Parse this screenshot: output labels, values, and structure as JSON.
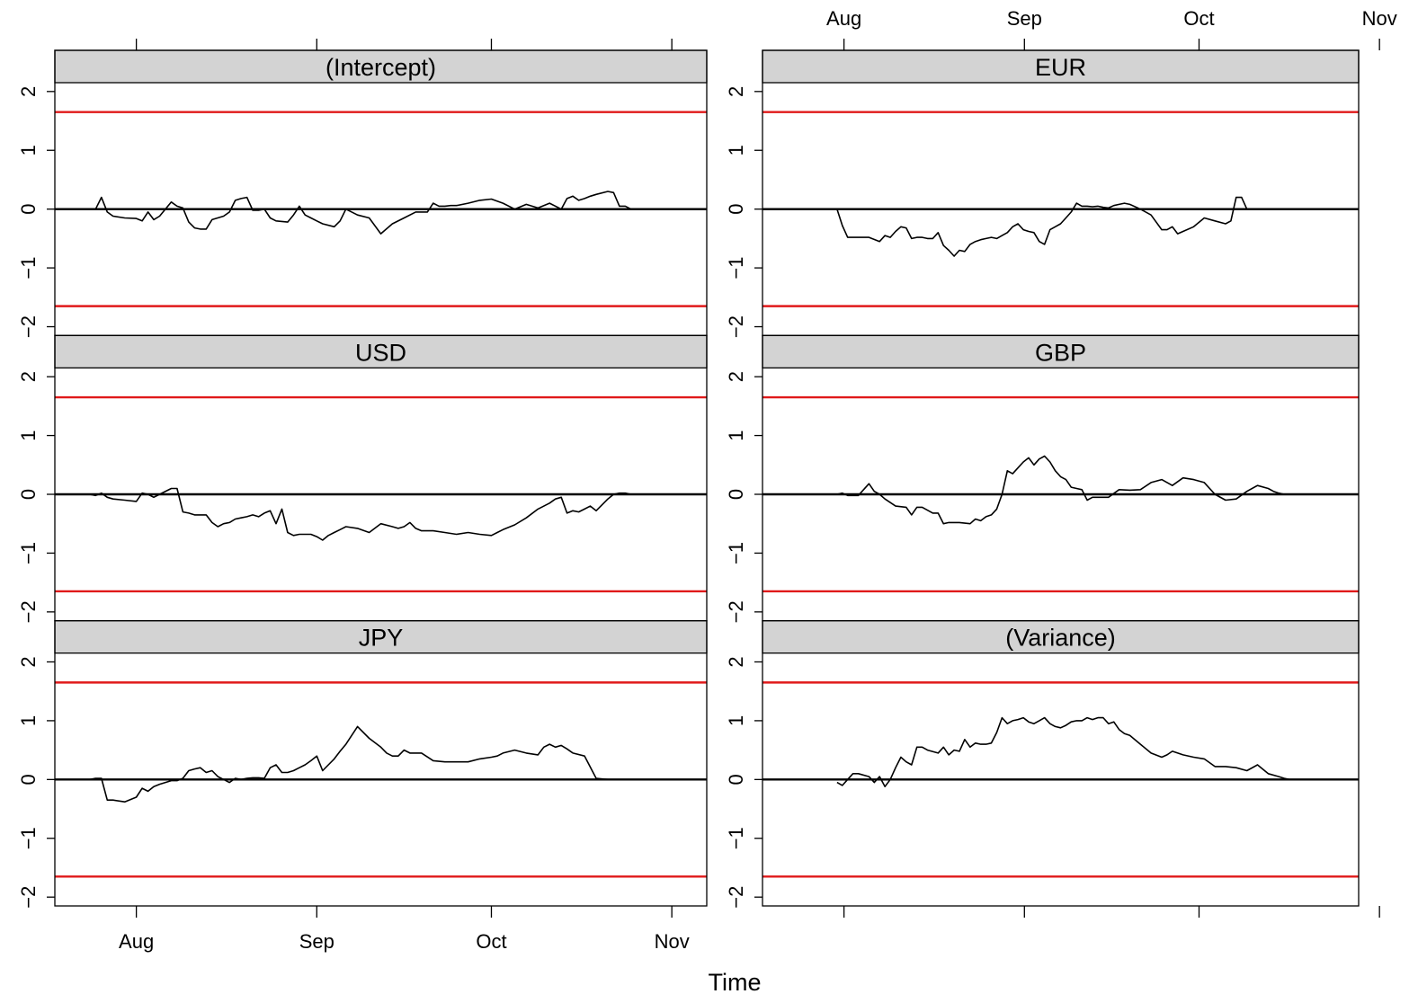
{
  "chart_data": {
    "type": "line",
    "xlabel": "Time",
    "ylabel": "",
    "ylim": [
      -2.15,
      2.15
    ],
    "y_ticks": [
      -2,
      -1,
      0,
      1,
      2
    ],
    "y_tick_labels": [
      "−2",
      "−1",
      "0",
      "1",
      "2"
    ],
    "x_ticks": [
      1,
      32,
      62,
      93
    ],
    "x_tick_labels": [
      "Aug",
      "Sep",
      "Oct",
      "Nov"
    ],
    "xlim": [
      -13,
      99
    ],
    "x_unit": "days since 1 Aug",
    "reference_lines": {
      "zero": 0,
      "upper": 1.65,
      "lower": -1.65
    },
    "colors": {
      "boundary": "#e0191a",
      "series": "#000000",
      "strip": "#d3d3d3"
    },
    "series": [
      {
        "name": "(Intercept)",
        "x": [
          -7,
          -6,
          -5,
          -4,
          -3,
          -1,
          1,
          2,
          3,
          4,
          5,
          7,
          8,
          9,
          10,
          11,
          12,
          13,
          14,
          16,
          17,
          18,
          19,
          20,
          21,
          22,
          23,
          24,
          25,
          27,
          28,
          29,
          30,
          31,
          32,
          33,
          35,
          36,
          37,
          39,
          41,
          43,
          45,
          47,
          49,
          51,
          52,
          53,
          54,
          55,
          56,
          58,
          60,
          62,
          64,
          66,
          68,
          70,
          72,
          74,
          75,
          76,
          77,
          78,
          79,
          80,
          82,
          83,
          84,
          85,
          86,
          87,
          88,
          89,
          90,
          91,
          92,
          93
        ],
        "y": [
          0.0,
          0.0,
          0.2,
          -0.05,
          -0.12,
          -0.15,
          -0.16,
          -0.2,
          -0.05,
          -0.18,
          -0.12,
          0.12,
          0.05,
          0.02,
          -0.22,
          -0.32,
          -0.34,
          -0.34,
          -0.18,
          -0.12,
          -0.05,
          0.15,
          0.18,
          0.2,
          -0.02,
          -0.02,
          0.0,
          -0.15,
          -0.2,
          -0.22,
          -0.1,
          0.05,
          -0.1,
          -0.15,
          -0.2,
          -0.25,
          -0.3,
          -0.2,
          0.0,
          -0.1,
          -0.15,
          -0.42,
          -0.25,
          -0.15,
          -0.05,
          -0.05,
          0.1,
          0.05,
          0.05,
          0.06,
          0.06,
          0.1,
          0.15,
          0.17,
          0.1,
          0.0,
          0.08,
          0.02,
          0.1,
          0.0,
          0.18,
          0.22,
          0.15,
          0.18,
          0.22,
          0.25,
          0.3,
          0.28,
          0.05,
          0.05,
          0.0,
          0.0,
          0.0,
          0.0,
          0.0,
          0.0,
          0.0,
          0.0
        ]
      },
      {
        "name": "EUR",
        "x": [
          1,
          2,
          3,
          4,
          5,
          7,
          9,
          10,
          11,
          12,
          13,
          14,
          15,
          16,
          17,
          18,
          19,
          20,
          21,
          22,
          23,
          24,
          25,
          26,
          27,
          28,
          29,
          30,
          31,
          32,
          33,
          34,
          35,
          36,
          37,
          38,
          39,
          40,
          41,
          42,
          43,
          44,
          45,
          46,
          47,
          48,
          49,
          50,
          51,
          52,
          53,
          54,
          55,
          56,
          58,
          60,
          62,
          63,
          64,
          65,
          66,
          68,
          70,
          72,
          74,
          75,
          76,
          77,
          78,
          80,
          82,
          84,
          85,
          86,
          88,
          90,
          92,
          93
        ],
        "y": [
          0.0,
          -0.28,
          -0.48,
          -0.48,
          -0.48,
          -0.48,
          -0.55,
          -0.45,
          -0.48,
          -0.38,
          -0.3,
          -0.32,
          -0.5,
          -0.48,
          -0.48,
          -0.5,
          -0.5,
          -0.4,
          -0.62,
          -0.7,
          -0.8,
          -0.7,
          -0.72,
          -0.6,
          -0.55,
          -0.52,
          -0.5,
          -0.48,
          -0.5,
          -0.45,
          -0.4,
          -0.3,
          -0.25,
          -0.35,
          -0.38,
          -0.4,
          -0.55,
          -0.6,
          -0.35,
          -0.3,
          -0.25,
          -0.15,
          -0.05,
          0.1,
          0.05,
          0.05,
          0.04,
          0.05,
          0.03,
          0.02,
          0.06,
          0.08,
          0.1,
          0.08,
          0.0,
          -0.1,
          -0.35,
          -0.35,
          -0.3,
          -0.42,
          -0.38,
          -0.3,
          -0.15,
          -0.2,
          -0.25,
          -0.2,
          0.2,
          0.2,
          0.0,
          0.0,
          0.0,
          0.0,
          0.0,
          0.0,
          0.0,
          0.0,
          0.0,
          0.0
        ]
      },
      {
        "name": "USD",
        "x": [
          -7,
          -6,
          -5,
          -4,
          -3,
          -1,
          1,
          2,
          3,
          4,
          5,
          7,
          8,
          9,
          10,
          11,
          12,
          13,
          14,
          15,
          16,
          17,
          18,
          19,
          20,
          21,
          22,
          23,
          24,
          25,
          26,
          27,
          28,
          29,
          30,
          31,
          32,
          33,
          34,
          35,
          36,
          37,
          39,
          41,
          43,
          45,
          46,
          47,
          48,
          49,
          50,
          52,
          54,
          56,
          58,
          60,
          62,
          63,
          64,
          66,
          68,
          70,
          72,
          73,
          74,
          75,
          76,
          77,
          78,
          79,
          80,
          82,
          83,
          84,
          85,
          86,
          87,
          88,
          89,
          90,
          91,
          92,
          93
        ],
        "y": [
          0.0,
          -0.02,
          0.02,
          -0.05,
          -0.08,
          -0.1,
          -0.12,
          0.02,
          0.0,
          -0.05,
          0.0,
          0.1,
          0.1,
          -0.3,
          -0.32,
          -0.35,
          -0.35,
          -0.35,
          -0.48,
          -0.55,
          -0.5,
          -0.48,
          -0.42,
          -0.4,
          -0.38,
          -0.35,
          -0.38,
          -0.32,
          -0.28,
          -0.5,
          -0.25,
          -0.65,
          -0.7,
          -0.68,
          -0.68,
          -0.68,
          -0.72,
          -0.78,
          -0.7,
          -0.65,
          -0.6,
          -0.55,
          -0.58,
          -0.65,
          -0.5,
          -0.55,
          -0.58,
          -0.55,
          -0.48,
          -0.58,
          -0.62,
          -0.62,
          -0.65,
          -0.68,
          -0.65,
          -0.68,
          -0.7,
          -0.65,
          -0.6,
          -0.52,
          -0.4,
          -0.25,
          -0.15,
          -0.08,
          -0.05,
          -0.32,
          -0.28,
          -0.3,
          -0.25,
          -0.2,
          -0.28,
          -0.08,
          0.0,
          0.02,
          0.02,
          0.0,
          0.0,
          0.0,
          0.0,
          0.0,
          0.0,
          0.0,
          0.0
        ]
      },
      {
        "name": "GBP",
        "x": [
          1,
          2,
          3,
          5,
          7,
          8,
          9,
          10,
          12,
          14,
          15,
          16,
          17,
          19,
          20,
          21,
          22,
          24,
          26,
          27,
          28,
          29,
          30,
          31,
          32,
          33,
          34,
          35,
          36,
          37,
          38,
          39,
          40,
          41,
          42,
          43,
          44,
          45,
          46,
          47,
          48,
          49,
          50,
          52,
          54,
          56,
          58,
          60,
          62,
          64,
          66,
          68,
          70,
          72,
          74,
          76,
          78,
          80,
          82,
          83,
          84,
          85,
          86,
          88,
          90,
          92,
          93
        ],
        "y": [
          0.0,
          0.02,
          -0.02,
          -0.02,
          0.18,
          0.05,
          0.0,
          -0.08,
          -0.2,
          -0.22,
          -0.35,
          -0.22,
          -0.22,
          -0.32,
          -0.32,
          -0.5,
          -0.48,
          -0.48,
          -0.5,
          -0.42,
          -0.45,
          -0.38,
          -0.35,
          -0.25,
          0.0,
          0.4,
          0.35,
          0.45,
          0.55,
          0.62,
          0.5,
          0.6,
          0.65,
          0.55,
          0.4,
          0.3,
          0.25,
          0.12,
          0.1,
          0.08,
          -0.1,
          -0.05,
          -0.05,
          -0.05,
          0.08,
          0.07,
          0.08,
          0.2,
          0.25,
          0.15,
          0.28,
          0.25,
          0.2,
          0.0,
          -0.1,
          -0.08,
          0.05,
          0.15,
          0.1,
          0.05,
          0.02,
          0.0,
          0.0,
          0.0,
          0.0,
          0.0,
          0.0
        ]
      },
      {
        "name": "JPY",
        "x": [
          -7,
          -6,
          -5,
          -4,
          -3,
          -1,
          1,
          2,
          3,
          4,
          5,
          6,
          7,
          8,
          9,
          10,
          11,
          12,
          13,
          14,
          15,
          16,
          17,
          18,
          19,
          20,
          21,
          22,
          23,
          24,
          25,
          26,
          27,
          28,
          29,
          30,
          31,
          32,
          33,
          34,
          35,
          36,
          37,
          39,
          41,
          43,
          44,
          45,
          46,
          47,
          48,
          49,
          50,
          52,
          54,
          55,
          56,
          58,
          60,
          62,
          63,
          64,
          66,
          68,
          70,
          71,
          72,
          73,
          74,
          75,
          76,
          78,
          80,
          82,
          83,
          84,
          85,
          86,
          87,
          88,
          89,
          90,
          91,
          92,
          93
        ],
        "y": [
          0.0,
          0.02,
          0.02,
          -0.35,
          -0.35,
          -0.38,
          -0.3,
          -0.15,
          -0.2,
          -0.12,
          -0.08,
          -0.05,
          -0.02,
          -0.02,
          0.02,
          0.15,
          0.18,
          0.2,
          0.12,
          0.15,
          0.05,
          0.0,
          -0.05,
          0.02,
          0.0,
          0.02,
          0.03,
          0.03,
          0.02,
          0.2,
          0.25,
          0.12,
          0.12,
          0.15,
          0.2,
          0.25,
          0.32,
          0.4,
          0.15,
          0.25,
          0.35,
          0.48,
          0.6,
          0.9,
          0.7,
          0.55,
          0.45,
          0.4,
          0.4,
          0.5,
          0.45,
          0.45,
          0.45,
          0.32,
          0.3,
          0.3,
          0.3,
          0.3,
          0.35,
          0.38,
          0.4,
          0.45,
          0.5,
          0.45,
          0.42,
          0.55,
          0.6,
          0.55,
          0.58,
          0.52,
          0.45,
          0.4,
          0.02,
          0.0,
          0.0,
          0.0,
          0.0,
          0.0,
          0.0,
          0.0,
          0.0,
          0.0,
          0.0,
          0.0,
          0.0
        ]
      },
      {
        "name": "(Variance)",
        "x": [
          1,
          2,
          3,
          4,
          5,
          7,
          8,
          9,
          10,
          11,
          12,
          13,
          14,
          15,
          16,
          17,
          18,
          20,
          21,
          22,
          23,
          24,
          25,
          26,
          27,
          28,
          29,
          30,
          31,
          32,
          33,
          34,
          35,
          36,
          37,
          38,
          39,
          40,
          41,
          42,
          43,
          44,
          45,
          46,
          47,
          48,
          49,
          50,
          51,
          52,
          53,
          54,
          55,
          56,
          58,
          60,
          62,
          63,
          64,
          66,
          68,
          70,
          72,
          74,
          76,
          78,
          80,
          82,
          84,
          85,
          86,
          87,
          88,
          90,
          92,
          93
        ],
        "y": [
          -0.05,
          -0.1,
          0.0,
          0.1,
          0.1,
          0.05,
          -0.05,
          0.05,
          -0.12,
          0.0,
          0.2,
          0.38,
          0.3,
          0.25,
          0.55,
          0.55,
          0.5,
          0.45,
          0.55,
          0.42,
          0.5,
          0.48,
          0.68,
          0.55,
          0.62,
          0.6,
          0.6,
          0.62,
          0.8,
          1.05,
          0.95,
          1.0,
          1.02,
          1.05,
          0.98,
          0.95,
          1.0,
          1.05,
          0.95,
          0.9,
          0.88,
          0.92,
          0.98,
          1.0,
          1.0,
          1.05,
          1.02,
          1.05,
          1.05,
          0.95,
          0.98,
          0.85,
          0.78,
          0.75,
          0.6,
          0.45,
          0.38,
          0.42,
          0.48,
          0.42,
          0.38,
          0.35,
          0.22,
          0.22,
          0.2,
          0.15,
          0.25,
          0.1,
          0.05,
          0.02,
          0.0,
          0.0,
          0.0,
          0.0,
          0.0,
          0.0
        ]
      }
    ]
  }
}
